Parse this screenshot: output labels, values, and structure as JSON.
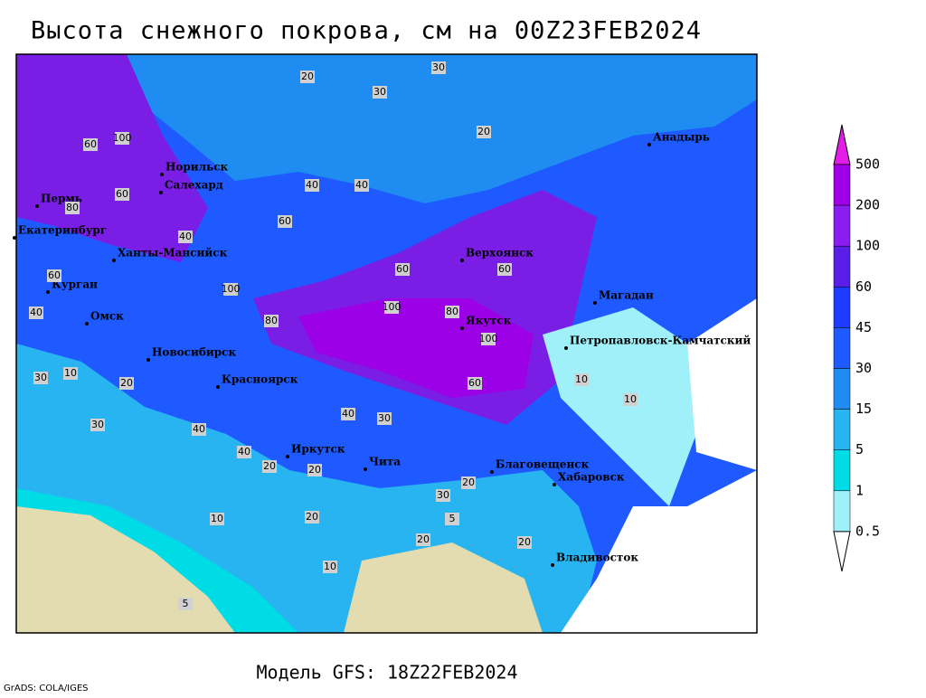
{
  "header": {
    "title": "Высота снежного покрова, см на 00Z23FEB2024"
  },
  "footer": {
    "model": "Модель GFS: 18Z22FEB2024",
    "credit": "GrADS: COLA/IGES"
  },
  "colorbar": {
    "levels": [
      500,
      200,
      100,
      60,
      45,
      30,
      15,
      5,
      1,
      0.5
    ]
  },
  "cities": [
    "Норильск",
    "Салехард",
    "Пермь",
    "Екатеринбург",
    "Ханты-Мансийск",
    "Курган",
    "Омск",
    "Новосибирск",
    "Красноярск",
    "Иркутск",
    "Чита",
    "Благовещенск",
    "Хабаровск",
    "Владивосток",
    "Якутск",
    "Верхоянск",
    "Магадан",
    "Петропавловск-Камчатский",
    "Анадырь"
  ],
  "contour_labels": [
    30,
    20,
    30,
    20,
    100,
    60,
    40,
    60,
    40,
    40,
    60,
    60,
    100,
    80,
    100,
    100,
    80,
    60,
    40,
    30,
    10,
    30,
    20,
    40,
    30,
    40,
    20,
    20,
    30,
    20,
    10,
    5,
    20,
    10,
    5,
    10,
    10,
    20,
    20,
    40,
    60,
    80,
    60
  ]
}
